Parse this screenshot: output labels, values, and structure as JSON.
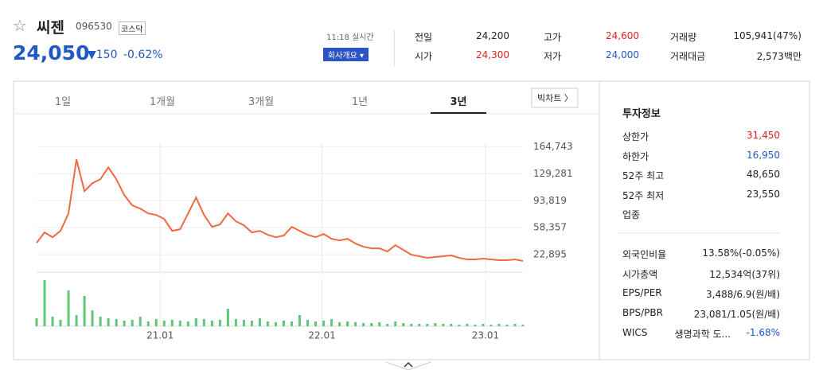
{
  "header": {
    "name": "씨젠",
    "code": "096530",
    "market": "코스닥",
    "price": "24,050",
    "change": "▼150",
    "change_rate": "-0.62%",
    "time": "11:18 실시간",
    "company_button": "회사개요"
  },
  "quote": {
    "rows": [
      [
        {
          "label": "전일",
          "value": "24,200"
        },
        {
          "label": "고가",
          "value": "24,600"
        },
        {
          "label": "거래량",
          "value": "105,941(47%)"
        }
      ],
      [
        {
          "label": "시가",
          "value": "24,300"
        },
        {
          "label": "저가",
          "value": "24,000"
        },
        {
          "label": "거래대금",
          "value": "2,573백만"
        }
      ]
    ]
  },
  "tabs": [
    "1일",
    "1개월",
    "3개월",
    "1년",
    "3년"
  ],
  "active_tab": "3년",
  "big_chart": "빅차트",
  "invest": {
    "title": "투자정보",
    "rows": [
      {
        "label": "상한가",
        "value": "31,450"
      },
      {
        "label": "하한가",
        "value": "16,950"
      },
      {
        "label": "52주 최고",
        "value": "48,650"
      },
      {
        "label": "52주 최저",
        "value": "23,550"
      },
      {
        "label": "업종",
        "value": null
      }
    ],
    "rows2": [
      {
        "label": "외국인비율",
        "value": "13.58%(-0.05%)"
      },
      {
        "label": "시가총액",
        "value": "12,534억(37위)"
      },
      {
        "label": "EPS/PER",
        "value": "3,488/6.9(원/배)"
      },
      {
        "label": "BPS/PBR",
        "value": "23,081/1.05(원/배)"
      },
      {
        "label": "WICS",
        "value": "생명과학 도...",
        "extra": "-1.68%"
      }
    ]
  },
  "chart_data": {
    "type": "line",
    "ylim": [
      0,
      184000
    ],
    "yticks": [
      {
        "value": 164743,
        "label": "164,743"
      },
      {
        "value": 129281,
        "label": "129,281"
      },
      {
        "value": 93819,
        "label": "93,819"
      },
      {
        "value": 58357,
        "label": "58,357"
      },
      {
        "value": 22895,
        "label": "22,895"
      }
    ],
    "xticks": [
      {
        "value": 15.5,
        "label": "21.01"
      },
      {
        "value": 35.8,
        "label": "22.01"
      },
      {
        "value": 56.3,
        "label": "23.01"
      }
    ],
    "grid": true,
    "series": [
      {
        "color": "#f2693f",
        "values": [
          38600,
          52150,
          45890,
          54240,
          77180,
          148100,
          106390,
          116820,
          122030,
          137680,
          122030,
          101170,
          87610,
          83440,
          77180,
          75100,
          69880,
          54240,
          56320,
          77180,
          98040,
          75100,
          59450,
          62580,
          77180,
          66750,
          61540,
          52150,
          54240,
          49020,
          45890,
          47980,
          59450,
          54240,
          49020,
          45890,
          50060,
          43810,
          41720,
          43810,
          37550,
          33380,
          31290,
          31290,
          27120,
          35460,
          29200,
          22950,
          20860,
          18770,
          19820,
          20860,
          21900,
          18770,
          16690,
          16690,
          17730,
          16690,
          15650,
          15650,
          16690,
          14600
        ]
      },
      {
        "color": "#5ec77c",
        "axis": "y2",
        "values": [
          10,
          58,
          12,
          8,
          45,
          14,
          38,
          20,
          12,
          10,
          9,
          7,
          8,
          12,
          6,
          9,
          7,
          8,
          7,
          6,
          10,
          9,
          7,
          8,
          22,
          9,
          8,
          7,
          10,
          6,
          5,
          7,
          6,
          14,
          8,
          6,
          7,
          9,
          5,
          6,
          5,
          4,
          4,
          5,
          3,
          6,
          4,
          3,
          3,
          3,
          4,
          3,
          3,
          2,
          3,
          2,
          3,
          2,
          3,
          2,
          3,
          2
        ]
      }
    ],
    "y2lim": [
      0,
      60
    ]
  }
}
